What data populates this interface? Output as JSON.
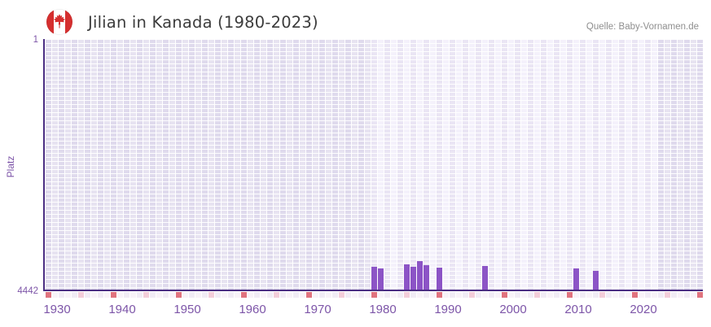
{
  "header": {
    "title": "Jilian in Kanada (1980-2023)",
    "source": "Quelle: Baby-Vornamen.de",
    "flag_icon": "canada-flag"
  },
  "chart_data": {
    "type": "bar",
    "title": "Jilian in Kanada (1980-2023)",
    "xlabel": "",
    "ylabel": "Platz",
    "y_axis": {
      "top_tick": "1",
      "bottom_tick": "4442",
      "min": 1,
      "max": 4442,
      "inverted": true
    },
    "x_ticks": [
      1930,
      1940,
      1950,
      1960,
      1970,
      1980,
      1990,
      2000,
      2010,
      2020
    ],
    "x_range": [
      1930,
      2030
    ],
    "highlight_year_range": [
      1980,
      2023
    ],
    "grid": true,
    "legend_visible": false,
    "series": [
      {
        "name": "Platz",
        "points": [
          {
            "year": 1980,
            "rank": 4030
          },
          {
            "year": 1981,
            "rank": 4050
          },
          {
            "year": 1985,
            "rank": 3985
          },
          {
            "year": 1986,
            "rank": 4020
          },
          {
            "year": 1987,
            "rank": 3930
          },
          {
            "year": 1988,
            "rank": 4000
          },
          {
            "year": 1990,
            "rank": 4040
          },
          {
            "year": 1997,
            "rank": 4010
          },
          {
            "year": 2011,
            "rank": 4060
          },
          {
            "year": 2014,
            "rank": 4100
          }
        ]
      }
    ],
    "colors": {
      "bar": "#8c54c6",
      "axis_line": "#4b2e83",
      "tick_label": "#7d55a8",
      "strip_red": "#e0737e",
      "strip_pink": "#f3cdd9",
      "flag_red": "#d52f2f",
      "title_text": "#3c3c3c",
      "source_text": "#8f8f8f"
    }
  }
}
